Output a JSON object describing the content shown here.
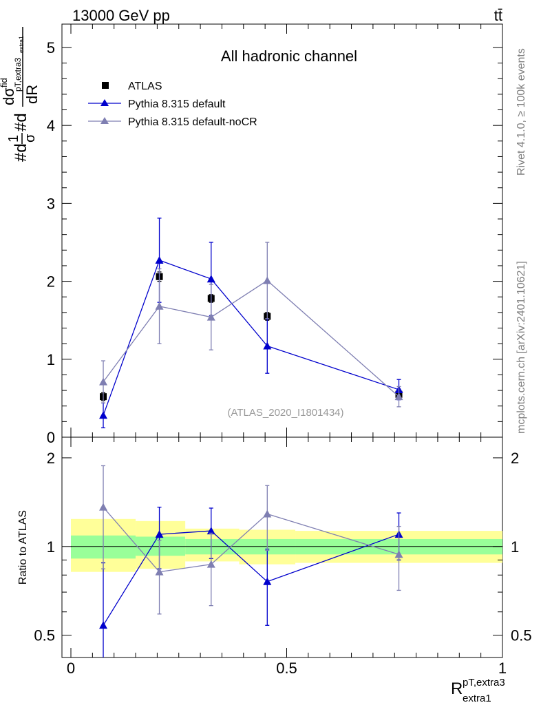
{
  "header": {
    "energy_label": "13000 GeV pp",
    "process_label": "tt̄"
  },
  "side_labels": {
    "rivet": "Rivet 4.1.0, ≥ 100k events",
    "mcplots": "mcplots.cern.ch [arXiv:2401.10621]"
  },
  "colors": {
    "atlas": "#000000",
    "default": "#0000cc",
    "nocr": "#7f7fb2",
    "band_outer": "#ffff99",
    "band_inner": "#99ff99",
    "watermark": "#999999"
  },
  "chart_data": [
    {
      "type": "scatter",
      "panel": "main",
      "title": "All hadronic channel",
      "watermark": "(ATLAS_2020_I1801434)",
      "ylabel_parts": {
        "hash_d": "#d",
        "one": "1",
        "sigma": "σ",
        "hash_d2": "#d",
        "d_sigma": "dσ",
        "fid": "fid",
        "subscript": "pT,extra3",
        "subsub": "extra1",
        "dR": "dR"
      },
      "xlim": [
        0,
        1
      ],
      "ylim": [
        0,
        5.3
      ],
      "yticks": [
        0,
        1,
        2,
        3,
        4,
        5
      ],
      "ytick_labels": [
        "0",
        "1",
        "2",
        "3",
        "4",
        "5"
      ],
      "legend_position": "top-left",
      "series": [
        {
          "name": "ATLAS",
          "marker": "square",
          "x": [
            0.075,
            0.205,
            0.325,
            0.455,
            0.76
          ],
          "y": [
            0.52,
            2.06,
            1.78,
            1.55,
            0.55
          ],
          "yerr": [
            0.05,
            0.06,
            0.05,
            0.05,
            0.03
          ]
        },
        {
          "name": "Pythia 8.315 default",
          "marker": "triangle",
          "x": [
            0.075,
            0.205,
            0.325,
            0.455,
            0.76
          ],
          "y": [
            0.28,
            2.27,
            2.03,
            1.17,
            0.61
          ],
          "yerr": [
            0.16,
            0.54,
            0.47,
            0.35,
            0.13
          ]
        },
        {
          "name": "Pythia 8.315 default-noCR",
          "marker": "triangle",
          "x": [
            0.075,
            0.205,
            0.325,
            0.455,
            0.76
          ],
          "y": [
            0.71,
            1.68,
            1.54,
            2.01,
            0.52
          ],
          "yerr": [
            0.27,
            0.48,
            0.42,
            0.49,
            0.13
          ]
        }
      ]
    },
    {
      "type": "scatter",
      "panel": "ratio",
      "ylabel": "Ratio to ATLAS",
      "xlabel": "R",
      "xlabel_sup": "pT,extra3",
      "xlabel_sub": "extra1",
      "xlim": [
        0,
        1
      ],
      "ylim": [
        0.42,
        2.35
      ],
      "ytick_labels_major": [
        "0.5",
        "1",
        "2"
      ],
      "yticks_major": [
        0.5,
        1,
        2
      ],
      "xticks_major": [
        0,
        0.5,
        1
      ],
      "xtick_labels": [
        "0",
        "0.5",
        "1"
      ],
      "bands": [
        {
          "x0": 0.0,
          "x1": 0.15,
          "outer": [
            0.82,
            1.24
          ],
          "inner": [
            0.91,
            1.09
          ]
        },
        {
          "x0": 0.15,
          "x1": 0.265,
          "outer": [
            0.84,
            1.22
          ],
          "inner": [
            0.93,
            1.08
          ]
        },
        {
          "x0": 0.265,
          "x1": 0.39,
          "outer": [
            0.89,
            1.15
          ],
          "inner": [
            0.94,
            1.06
          ]
        },
        {
          "x0": 0.39,
          "x1": 0.52,
          "outer": [
            0.87,
            1.14
          ],
          "inner": [
            0.94,
            1.06
          ]
        },
        {
          "x0": 0.52,
          "x1": 1.0,
          "outer": [
            0.88,
            1.13
          ],
          "inner": [
            0.94,
            1.06
          ]
        }
      ],
      "series": [
        {
          "name": "Pythia 8.315 default",
          "x": [
            0.075,
            0.205,
            0.325,
            0.455,
            0.76
          ],
          "y": [
            0.54,
            1.1,
            1.13,
            0.76,
            1.1
          ],
          "yerr_lo": [
            0.4,
            0.26,
            0.22,
            0.22,
            0.2
          ],
          "yerr_hi": [
            0.34,
            0.26,
            0.22,
            0.22,
            0.2
          ]
        },
        {
          "name": "Pythia 8.315 default-noCR",
          "x": [
            0.075,
            0.205,
            0.325,
            0.455,
            0.76
          ],
          "y": [
            1.36,
            0.82,
            0.87,
            1.29,
            0.94
          ],
          "yerr_lo": [
            0.52,
            0.23,
            0.24,
            0.32,
            0.23
          ],
          "yerr_hi": [
            0.52,
            0.23,
            0.24,
            0.32,
            0.23
          ]
        }
      ]
    }
  ]
}
